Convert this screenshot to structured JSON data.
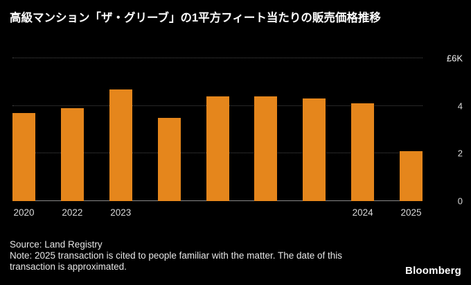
{
  "header": {
    "title": "高級マンション「ザ・グリーブ」の1平方フィート当たりの販売価格推移"
  },
  "chart_data": {
    "type": "bar",
    "title": "高級マンション「ザ・グリーブ」の1平方フィート当たりの販売価格推移",
    "categories": [
      "2020",
      "2022",
      "2023",
      "",
      "",
      "",
      "",
      "2024",
      "2025"
    ],
    "values": [
      3.7,
      3.9,
      4.7,
      3.5,
      4.4,
      4.4,
      4.3,
      4.1,
      2.1
    ],
    "xlabel": "",
    "ylabel": "",
    "ylim": [
      0,
      6
    ],
    "yticks": [
      {
        "value": 0,
        "label": "0"
      },
      {
        "value": 2,
        "label": "2"
      },
      {
        "value": 4,
        "label": "4"
      },
      {
        "value": 6,
        "label": "£6K"
      }
    ],
    "bar_color": "#E5861C",
    "grid": "horizontal-dotted",
    "legend": "none",
    "background": "#000000"
  },
  "footer": {
    "source": "Source: Land Registry",
    "note": "Note: 2025 transaction is cited to people familiar with the matter. The date of this transaction is approximated.",
    "logo": "Bloomberg"
  },
  "colors": {
    "background": "#000000",
    "bar": "#E5861C",
    "title_text": "#FFFFFF",
    "muted_text": "#D9D9D9",
    "gridline": "#4D4D4D",
    "baseline": "#8A8A8A"
  }
}
